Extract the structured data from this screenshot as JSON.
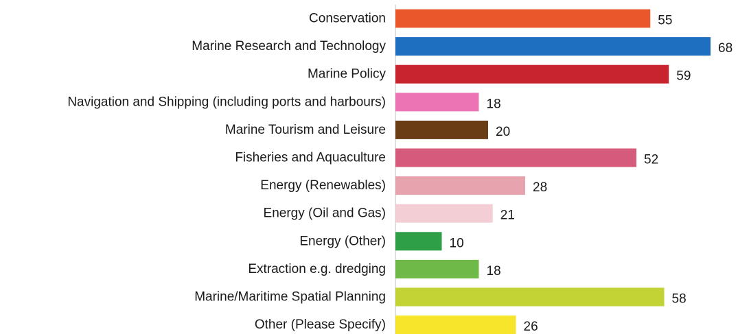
{
  "chart_data": {
    "type": "bar",
    "orientation": "horizontal",
    "categories": [
      "Conservation",
      "Marine Research and Technology",
      "Marine Policy",
      "Navigation and Shipping (including ports and harbours)",
      "Marine Tourism and Leisure",
      "Fisheries and Aquaculture",
      "Energy (Renewables)",
      "Energy (Oil and Gas)",
      "Energy (Other)",
      "Extraction e.g. dredging",
      "Marine/Maritime Spatial Planning",
      "Other (Please Specify)"
    ],
    "values": [
      55,
      68,
      59,
      18,
      20,
      52,
      28,
      21,
      10,
      18,
      58,
      26
    ],
    "data_labels": [
      "55",
      "68",
      "59",
      "18",
      "20",
      "52",
      "28",
      "21",
      "10",
      "18",
      "58",
      "26"
    ],
    "colors": [
      "#e8582a",
      "#1f6fc0",
      "#c8242e",
      "#ec74b4",
      "#6b3d14",
      "#d65a7a",
      "#e8a4ae",
      "#f3cfd5",
      "#2e9e47",
      "#6fb948",
      "#c2d435",
      "#f7e52c"
    ],
    "title": "",
    "xlabel": "",
    "ylabel": "",
    "xlim": [
      0,
      68
    ],
    "grid": false,
    "legend": "none"
  }
}
